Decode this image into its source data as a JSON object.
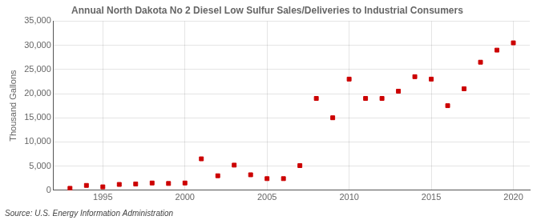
{
  "chart_data": {
    "type": "scatter",
    "title": "Annual North Dakota No 2 Diesel Low Sulfur Sales/Deliveries to Industrial Consumers",
    "ylabel": "Thousand Gallons",
    "annotation": "Source: U.S. Energy Information Administration",
    "x": [
      1993,
      1994,
      1995,
      1996,
      1997,
      1998,
      1999,
      2000,
      2001,
      2002,
      2003,
      2004,
      2005,
      2006,
      2007,
      2008,
      2009,
      2010,
      2011,
      2012,
      2013,
      2014,
      2015,
      2016,
      2017,
      2018,
      2019,
      2020
    ],
    "values": [
      400,
      1000,
      700,
      1200,
      1300,
      1500,
      1400,
      1500,
      6500,
      3000,
      5200,
      3200,
      2400,
      2400,
      5100,
      19000,
      15000,
      23000,
      19000,
      19000,
      20500,
      23500,
      23000,
      17500,
      21000,
      26500,
      29000,
      30500
    ],
    "color": "#cc0000",
    "marker": "square",
    "xlim": [
      1992,
      2021
    ],
    "xticks": [
      1995,
      2000,
      2005,
      2010,
      2015,
      2020
    ],
    "ylim": [
      0,
      35000
    ],
    "yticks": [
      0,
      {
        "value": 5000,
        "label": "5,000"
      },
      {
        "value": 10000,
        "label": "10,000"
      },
      {
        "value": 15000,
        "label": "15,000"
      },
      {
        "value": 20000,
        "label": "20,000"
      },
      {
        "value": 25000,
        "label": "25,000"
      },
      {
        "value": 30000,
        "label": "30,000"
      },
      {
        "value": 35000,
        "label": "35,000"
      }
    ],
    "grid": true
  }
}
